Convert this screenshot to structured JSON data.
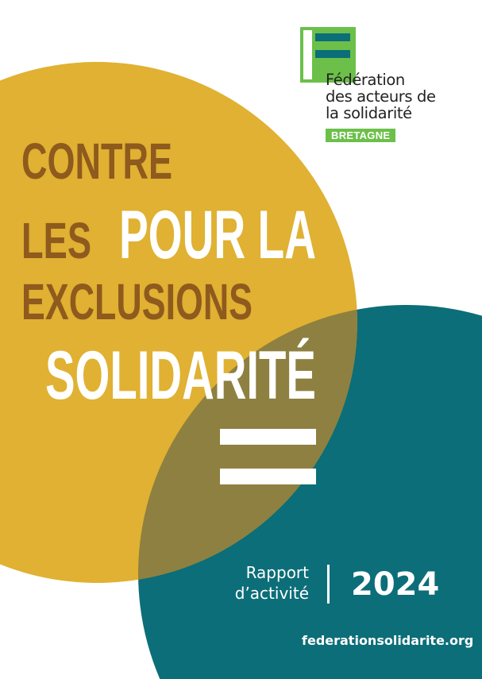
{
  "colors": {
    "yellow": "#e0b132",
    "teal": "#0c6e78",
    "overlap": "#8e8040",
    "brown": "#8f5a1d",
    "green": "#6cc04a"
  },
  "logo": {
    "name_lines": [
      "Fédération",
      "des acteurs de",
      "la solidarité"
    ],
    "region": "BRETAGNE"
  },
  "headline": {
    "contre": [
      "CONTRE",
      "LES",
      "EXCLUSIONS"
    ],
    "pour": [
      "POUR LA",
      "SOLIDARITÉ"
    ]
  },
  "report": {
    "label_lines": [
      "Rapport",
      "d’activité"
    ],
    "year": "2024"
  },
  "website": "federationsolidarite.org"
}
